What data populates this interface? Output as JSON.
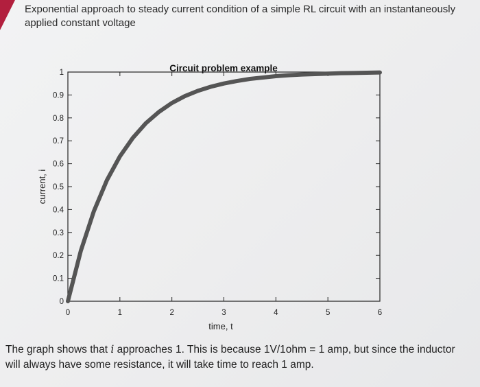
{
  "header": {
    "text": "Exponential approach to steady current condition of a simple RL circuit with an instantaneously applied constant voltage"
  },
  "footer": {
    "text_before": "The graph shows that ",
    "variable": "i",
    "text_after": " approaches 1. This is because 1V/1ohm = 1 amp, but since the inductor will always have some resistance, it will take time to reach 1 amp."
  },
  "colors": {
    "curve": "#555555",
    "axes": "#222222",
    "accent": "#b21f3e"
  },
  "chart_data": {
    "type": "line",
    "title": "Circuit problem example",
    "xlabel": "time, t",
    "ylabel": "current, i",
    "xlim": [
      0,
      6
    ],
    "ylim": [
      0,
      1
    ],
    "x_ticks": [
      0,
      1,
      2,
      3,
      4,
      5,
      6
    ],
    "y_ticks": [
      0,
      0.1,
      0.2,
      0.3,
      0.4,
      0.5,
      0.6,
      0.7,
      0.8,
      0.9,
      1
    ],
    "x_tick_labels": [
      "0",
      "1",
      "2",
      "3",
      "4",
      "5",
      "6"
    ],
    "y_tick_labels": [
      "0",
      "0.1",
      "0.2",
      "0.3",
      "0.4",
      "0.5",
      "0.6",
      "0.7",
      "0.8",
      "0.9",
      "1"
    ],
    "grid": false,
    "series": [
      {
        "x": [
          0,
          0.25,
          0.5,
          0.75,
          1,
          1.25,
          1.5,
          1.75,
          2,
          2.25,
          2.5,
          2.75,
          3,
          3.25,
          3.5,
          3.75,
          4,
          4.25,
          4.5,
          4.75,
          5,
          5.25,
          5.5,
          5.75,
          6
        ],
        "values": [
          0,
          0.221,
          0.393,
          0.528,
          0.632,
          0.713,
          0.777,
          0.826,
          0.865,
          0.895,
          0.918,
          0.936,
          0.95,
          0.961,
          0.97,
          0.976,
          0.982,
          0.986,
          0.989,
          0.991,
          0.993,
          0.995,
          0.996,
          0.997,
          0.998
        ]
      }
    ]
  }
}
